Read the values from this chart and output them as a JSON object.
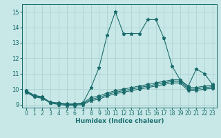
{
  "xlabel": "Humidex (Indice chaleur)",
  "xlim": [
    -0.5,
    23.5
  ],
  "ylim": [
    8.8,
    15.5
  ],
  "yticks": [
    9,
    10,
    11,
    12,
    13,
    14,
    15
  ],
  "xticks": [
    0,
    1,
    2,
    3,
    4,
    5,
    6,
    7,
    8,
    9,
    10,
    11,
    12,
    13,
    14,
    15,
    16,
    17,
    18,
    19,
    20,
    21,
    22,
    23
  ],
  "bg_color": "#c8e8e8",
  "grid_color": "#a8cccc",
  "line_color": "#1a6b6b",
  "lines": [
    {
      "x": [
        0,
        1,
        2,
        3,
        4,
        5,
        6,
        7,
        8,
        9,
        10,
        11,
        12,
        13,
        14,
        15,
        16,
        17,
        18,
        19,
        20,
        21,
        22,
        23
      ],
      "y": [
        9.9,
        9.6,
        9.5,
        9.1,
        9.1,
        9.0,
        9.0,
        9.1,
        10.1,
        11.4,
        13.5,
        15.0,
        13.6,
        13.6,
        13.6,
        14.5,
        14.5,
        13.3,
        11.5,
        10.6,
        10.2,
        11.3,
        11.0,
        10.3
      ]
    },
    {
      "x": [
        0,
        1,
        2,
        3,
        4,
        5,
        6,
        7,
        8,
        9,
        10,
        11,
        12,
        13,
        14,
        15,
        16,
        17,
        18,
        19,
        20,
        21,
        22,
        23
      ],
      "y": [
        9.85,
        9.55,
        9.45,
        9.15,
        9.1,
        9.05,
        9.05,
        9.1,
        9.45,
        9.55,
        9.75,
        9.9,
        10.0,
        10.1,
        10.2,
        10.3,
        10.4,
        10.5,
        10.6,
        10.6,
        10.1,
        10.1,
        10.2,
        10.25
      ]
    },
    {
      "x": [
        0,
        1,
        2,
        3,
        4,
        5,
        6,
        7,
        8,
        9,
        10,
        11,
        12,
        13,
        14,
        15,
        16,
        17,
        18,
        19,
        20,
        21,
        22,
        23
      ],
      "y": [
        9.85,
        9.55,
        9.45,
        9.15,
        9.05,
        9.0,
        9.0,
        9.05,
        9.35,
        9.45,
        9.65,
        9.8,
        9.9,
        10.0,
        10.1,
        10.2,
        10.3,
        10.4,
        10.5,
        10.5,
        10.0,
        10.0,
        10.1,
        10.15
      ]
    },
    {
      "x": [
        0,
        1,
        2,
        3,
        4,
        5,
        6,
        7,
        8,
        9,
        10,
        11,
        12,
        13,
        14,
        15,
        16,
        17,
        18,
        19,
        20,
        21,
        22,
        23
      ],
      "y": [
        9.8,
        9.5,
        9.4,
        9.1,
        9.0,
        8.95,
        8.95,
        9.0,
        9.25,
        9.35,
        9.55,
        9.7,
        9.8,
        9.9,
        10.0,
        10.1,
        10.2,
        10.3,
        10.4,
        10.4,
        9.9,
        9.9,
        10.0,
        10.05
      ]
    }
  ]
}
